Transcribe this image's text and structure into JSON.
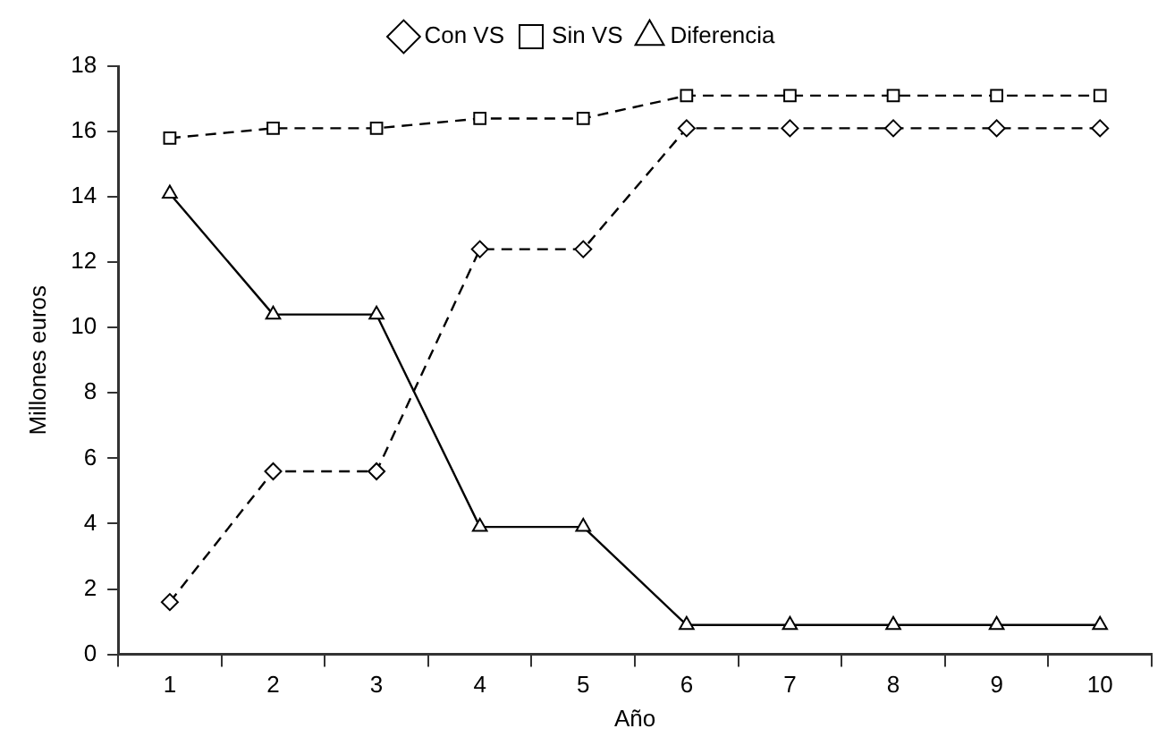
{
  "chart_data": {
    "type": "line",
    "xlabel": "Año",
    "ylabel": "Millones euros",
    "categories": [
      "1",
      "2",
      "3",
      "4",
      "5",
      "6",
      "7",
      "8",
      "9",
      "10"
    ],
    "ylim": [
      0,
      18
    ],
    "yticks": [
      0,
      2,
      4,
      6,
      8,
      10,
      12,
      14,
      16,
      18
    ],
    "grid": false,
    "legend": "top",
    "series": [
      {
        "name": "Con VS",
        "color": "#000000",
        "marker": "diamond",
        "line_style": "dashed",
        "values": [
          1.6,
          5.6,
          5.6,
          12.4,
          12.4,
          16.1,
          16.1,
          16.1,
          16.1,
          16.1
        ]
      },
      {
        "name": "Sin VS",
        "color": "#000000",
        "marker": "square",
        "line_style": "dashed",
        "values": [
          15.8,
          16.1,
          16.1,
          16.4,
          16.4,
          17.1,
          17.1,
          17.1,
          17.1,
          17.1
        ]
      },
      {
        "name": "Diferencia",
        "color": "#000000",
        "marker": "triangle",
        "line_style": "solid",
        "values": [
          14.1,
          10.4,
          10.4,
          3.9,
          3.9,
          0.9,
          0.9,
          0.9,
          0.9,
          0.9
        ]
      }
    ]
  }
}
